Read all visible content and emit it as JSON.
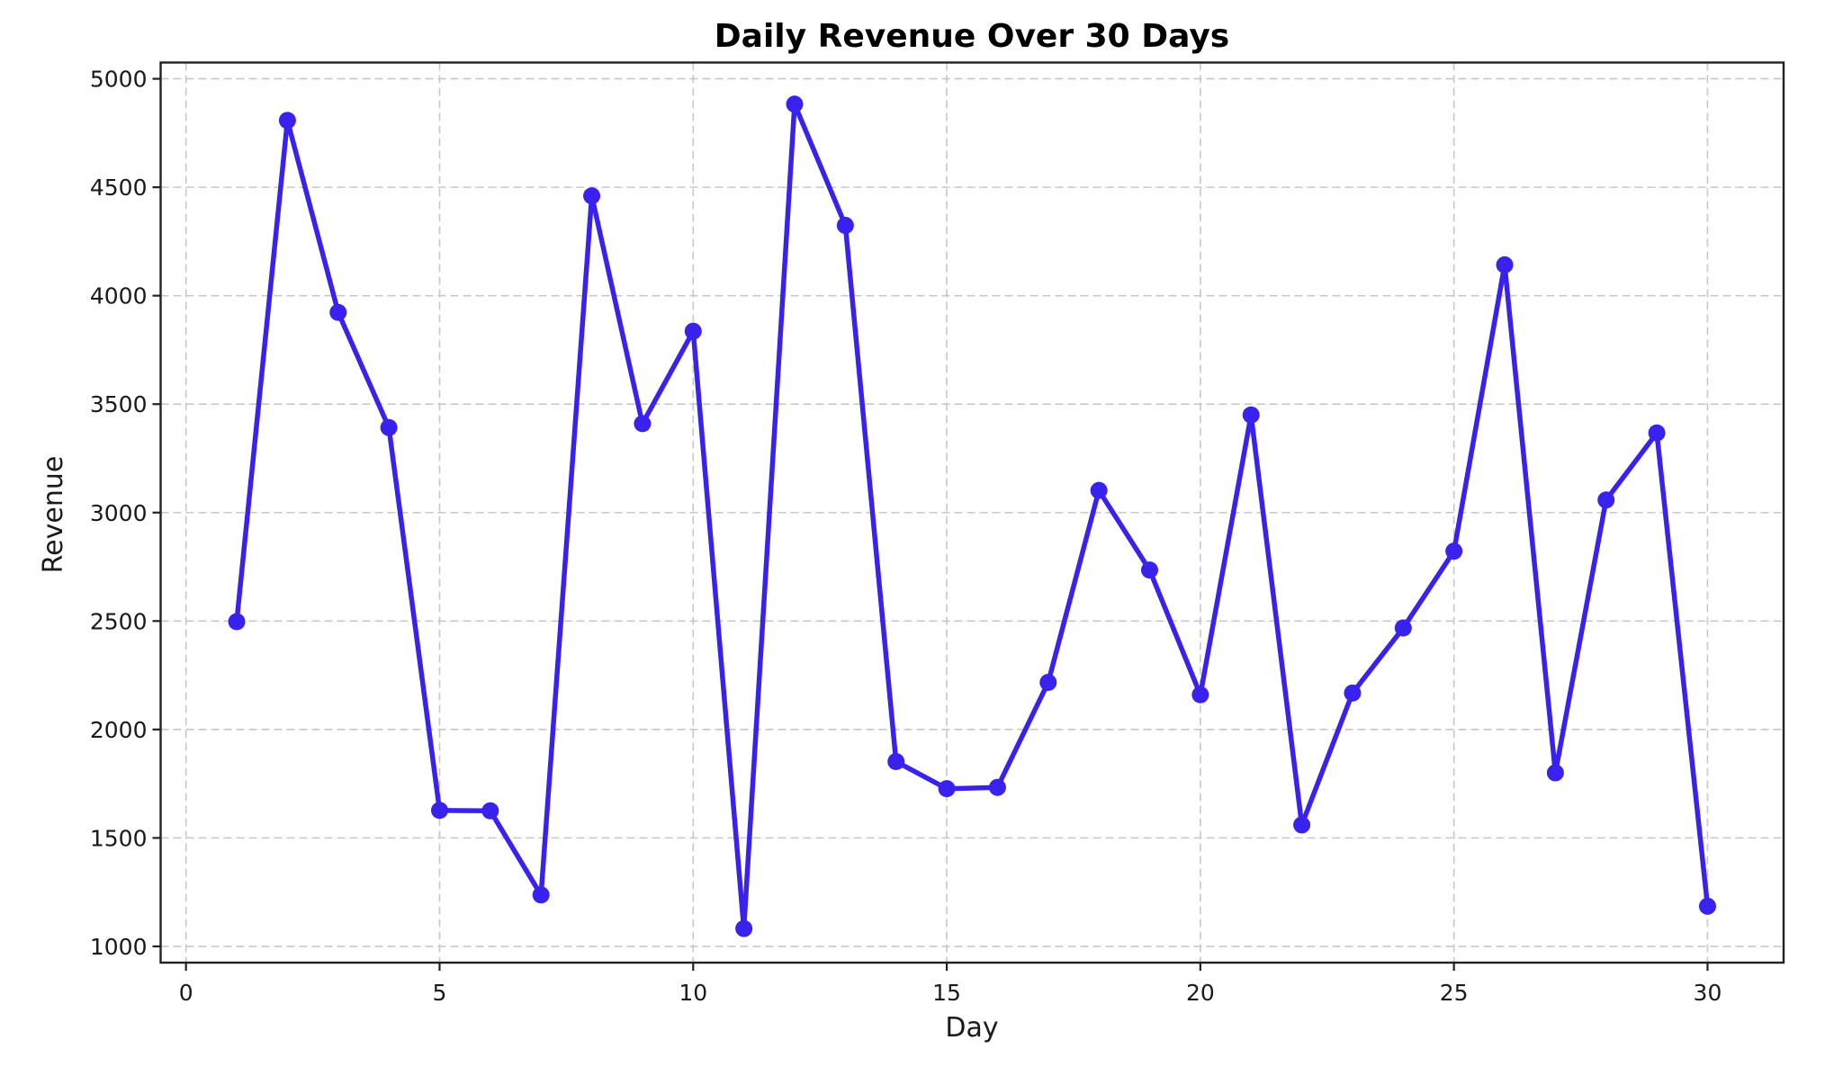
{
  "chart_data": {
    "type": "line",
    "title": "Daily Revenue Over 30 Days",
    "xlabel": "Day",
    "ylabel": "Revenue",
    "xlim": [
      -0.5,
      31.5
    ],
    "ylim": [
      925,
      5075
    ],
    "xticks": [
      0,
      5,
      10,
      15,
      20,
      25,
      30
    ],
    "yticks": [
      1000,
      1500,
      2000,
      2500,
      3000,
      3500,
      4000,
      4500,
      5000
    ],
    "grid": true,
    "grid_style": "dashed",
    "legend": null,
    "x": [
      1,
      2,
      3,
      4,
      5,
      6,
      7,
      8,
      9,
      10,
      11,
      12,
      13,
      14,
      15,
      16,
      17,
      18,
      19,
      20,
      21,
      22,
      23,
      24,
      25,
      26,
      27,
      28,
      29,
      30
    ],
    "series": [
      {
        "name": "Revenue",
        "color": "#3a22ee",
        "marker": "circle",
        "values": [
          2497,
          4808,
          3923,
          3392,
          1627,
          1625,
          1237,
          4460,
          3410,
          3836,
          1082,
          4883,
          4324,
          1852,
          1727,
          1733,
          2217,
          3102,
          2735,
          2160,
          3450,
          1560,
          2168,
          2468,
          2822,
          4142,
          1800,
          3058,
          3367,
          1185
        ]
      }
    ]
  }
}
